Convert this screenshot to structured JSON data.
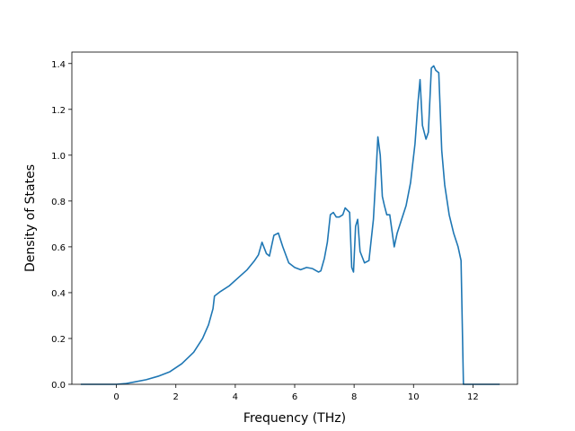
{
  "chart_data": {
    "type": "line",
    "title": "",
    "xlabel": "Frequency (THz)",
    "ylabel": "Density of States",
    "xlim": [
      -1.5,
      13.5
    ],
    "ylim": [
      0.0,
      1.45
    ],
    "xticks": [
      0,
      2,
      4,
      6,
      8,
      10,
      12
    ],
    "yticks": [
      0.0,
      0.2,
      0.4,
      0.6,
      0.8,
      1.0,
      1.2,
      1.4
    ],
    "xtick_labels": [
      "0",
      "2",
      "4",
      "6",
      "8",
      "10",
      "12"
    ],
    "ytick_labels": [
      "0.0",
      "0.2",
      "0.4",
      "0.6",
      "0.8",
      "1.0",
      "1.2",
      "1.4"
    ],
    "grid": false,
    "legend": "none",
    "line_color": "#1f77b4",
    "series": [
      {
        "x": [
          -1.2,
          -0.5,
          0.0,
          0.3,
          0.6,
          1.0,
          1.4,
          1.8,
          2.2,
          2.6,
          2.9,
          3.1,
          3.25,
          3.3,
          3.5,
          3.8,
          4.1,
          4.4,
          4.65,
          4.78,
          4.9,
          5.05,
          5.15,
          5.3,
          5.45,
          5.6,
          5.8,
          6.0,
          6.2,
          6.4,
          6.6,
          6.8,
          6.88,
          7.0,
          7.1,
          7.2,
          7.3,
          7.4,
          7.5,
          7.62,
          7.7,
          7.85,
          7.92,
          7.98,
          8.05,
          8.12,
          8.2,
          8.35,
          8.5,
          8.65,
          8.75,
          8.8,
          8.88,
          8.95,
          9.02,
          9.1,
          9.2,
          9.35,
          9.45,
          9.6,
          9.75,
          9.9,
          10.05,
          10.15,
          10.22,
          10.3,
          10.42,
          10.5,
          10.6,
          10.68,
          10.75,
          10.85,
          10.95,
          11.05,
          11.2,
          11.35,
          11.5,
          11.6,
          11.68,
          11.75,
          12.0,
          12.9
        ],
        "y": [
          0.0,
          0.0,
          0.0,
          0.003,
          0.01,
          0.02,
          0.035,
          0.055,
          0.09,
          0.14,
          0.2,
          0.26,
          0.33,
          0.385,
          0.405,
          0.43,
          0.465,
          0.5,
          0.54,
          0.565,
          0.62,
          0.57,
          0.56,
          0.65,
          0.66,
          0.6,
          0.53,
          0.51,
          0.5,
          0.51,
          0.505,
          0.49,
          0.495,
          0.55,
          0.62,
          0.74,
          0.75,
          0.73,
          0.73,
          0.74,
          0.77,
          0.75,
          0.51,
          0.49,
          0.69,
          0.72,
          0.58,
          0.53,
          0.54,
          0.72,
          0.95,
          1.08,
          1.0,
          0.82,
          0.78,
          0.74,
          0.74,
          0.6,
          0.66,
          0.72,
          0.78,
          0.88,
          1.05,
          1.23,
          1.33,
          1.13,
          1.07,
          1.1,
          1.38,
          1.39,
          1.37,
          1.36,
          1.02,
          0.87,
          0.74,
          0.66,
          0.6,
          0.54,
          0.0,
          0.0,
          0.0,
          0.0
        ]
      }
    ]
  }
}
